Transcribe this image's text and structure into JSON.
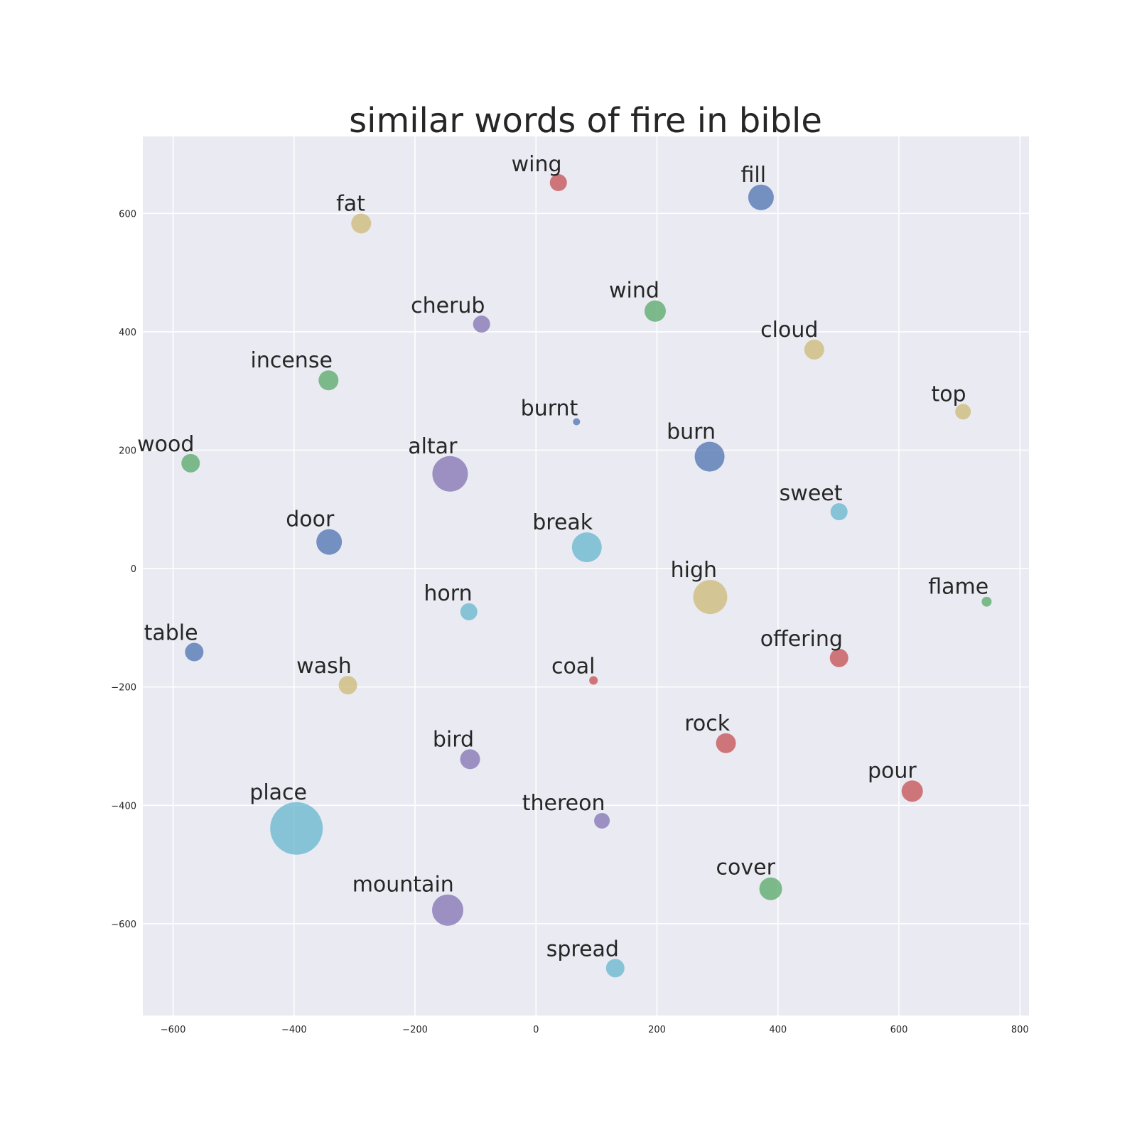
{
  "chart_data": {
    "type": "scatter",
    "title": "similar words of fire in bible",
    "xlabel": "",
    "ylabel": "",
    "xlim": [
      -650,
      815
    ],
    "ylim": [
      -755,
      730
    ],
    "xticks": [
      -600,
      -400,
      -200,
      0,
      200,
      400,
      600,
      800
    ],
    "yticks": [
      -600,
      -400,
      -200,
      0,
      200,
      400,
      600
    ],
    "xtick_labels": [
      "−600",
      "−400",
      "−200",
      "0",
      "200",
      "400",
      "600",
      "800"
    ],
    "ytick_labels": [
      "−600",
      "−400",
      "−200",
      "0",
      "200",
      "400",
      "600"
    ],
    "grid": true,
    "colors": {
      "blue": "#4c72b0",
      "green": "#55a868",
      "red": "#c44e52",
      "purple": "#8172b2",
      "yellow": "#ccb974",
      "cyan": "#64b5cd",
      "background": "#eaeaf2"
    },
    "points": [
      {
        "word": "wing",
        "x": 37,
        "y": 652,
        "size": 12,
        "color": "red"
      },
      {
        "word": "fill",
        "x": 372,
        "y": 627,
        "size": 18,
        "color": "blue"
      },
      {
        "word": "fat",
        "x": -289,
        "y": 583,
        "size": 14,
        "color": "yellow"
      },
      {
        "word": "cherub",
        "x": -90,
        "y": 413,
        "size": 12,
        "color": "purple"
      },
      {
        "word": "wind",
        "x": 197,
        "y": 435,
        "size": 15,
        "color": "green"
      },
      {
        "word": "cloud",
        "x": 460,
        "y": 370,
        "size": 14,
        "color": "yellow"
      },
      {
        "word": "incense",
        "x": -343,
        "y": 318,
        "size": 14,
        "color": "green"
      },
      {
        "word": "burnt",
        "x": 67,
        "y": 248,
        "size": 5,
        "color": "blue"
      },
      {
        "word": "top",
        "x": 706,
        "y": 265,
        "size": 11,
        "color": "yellow"
      },
      {
        "word": "wood",
        "x": -571,
        "y": 178,
        "size": 13,
        "color": "green"
      },
      {
        "word": "altar",
        "x": -142,
        "y": 160,
        "size": 25,
        "color": "purple"
      },
      {
        "word": "burn",
        "x": 287,
        "y": 189,
        "size": 21,
        "color": "blue"
      },
      {
        "word": "sweet",
        "x": 501,
        "y": 96,
        "size": 12,
        "color": "cyan"
      },
      {
        "word": "door",
        "x": -342,
        "y": 45,
        "size": 18,
        "color": "blue"
      },
      {
        "word": "break",
        "x": 84,
        "y": 36,
        "size": 21,
        "color": "cyan"
      },
      {
        "word": "high",
        "x": 288,
        "y": -48,
        "size": 24,
        "color": "yellow"
      },
      {
        "word": "flame",
        "x": 745,
        "y": -56,
        "size": 7,
        "color": "green"
      },
      {
        "word": "horn",
        "x": -111,
        "y": -73,
        "size": 12,
        "color": "cyan"
      },
      {
        "word": "table",
        "x": -565,
        "y": -141,
        "size": 13,
        "color": "blue"
      },
      {
        "word": "offering",
        "x": 501,
        "y": -151,
        "size": 13,
        "color": "red"
      },
      {
        "word": "wash",
        "x": -311,
        "y": -197,
        "size": 13,
        "color": "yellow"
      },
      {
        "word": "coal",
        "x": 95,
        "y": -189,
        "size": 6,
        "color": "red"
      },
      {
        "word": "rock",
        "x": 314,
        "y": -295,
        "size": 14,
        "color": "red"
      },
      {
        "word": "bird",
        "x": -109,
        "y": -322,
        "size": 14,
        "color": "purple"
      },
      {
        "word": "pour",
        "x": 622,
        "y": -376,
        "size": 15,
        "color": "red"
      },
      {
        "word": "place",
        "x": -396,
        "y": -439,
        "size": 37,
        "color": "cyan"
      },
      {
        "word": "thereon",
        "x": 109,
        "y": -426,
        "size": 11,
        "color": "purple"
      },
      {
        "word": "cover",
        "x": 388,
        "y": -541,
        "size": 16,
        "color": "green"
      },
      {
        "word": "mountain",
        "x": -146,
        "y": -577,
        "size": 22,
        "color": "purple"
      },
      {
        "word": "spread",
        "x": 131,
        "y": -675,
        "size": 13,
        "color": "cyan"
      }
    ]
  }
}
